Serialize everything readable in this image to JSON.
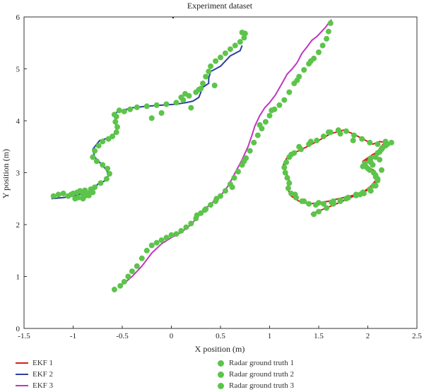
{
  "chart_data": {
    "type": "line",
    "title": "Experiment dataset",
    "xlabel": "X position (m)",
    "ylabel": "Y position (m)",
    "xlim": [
      -1.5,
      2.5
    ],
    "ylim": [
      0,
      6
    ],
    "xticks": [
      "-1.5",
      "-1",
      "-0.5",
      "0",
      "0.5",
      "1",
      "1.5",
      "2",
      "2.5"
    ],
    "yticks": [
      "0",
      "1",
      "2",
      "3",
      "4",
      "5",
      "6"
    ],
    "grid": false,
    "legend_position": "bottom",
    "series": [
      {
        "name": "EKF 1",
        "kind": "line",
        "color": "#d62020",
        "x": [
          1.42,
          1.55,
          1.68,
          1.8,
          1.92,
          2.02,
          2.08,
          2.1,
          2.06,
          2.0,
          1.95,
          2.05,
          2.1,
          2.13,
          2.17,
          2.22,
          2.12,
          2.05,
          1.95,
          1.85,
          1.75,
          1.62,
          1.5,
          1.38,
          1.27,
          1.18,
          1.14,
          1.17,
          1.2,
          1.18,
          1.22,
          1.3,
          1.4,
          1.5,
          1.6,
          1.7,
          1.82,
          1.93,
          2.02,
          2.08,
          2.07,
          2.0,
          1.95,
          2.05,
          2.15,
          2.2
        ],
        "y": [
          2.2,
          2.3,
          2.4,
          2.5,
          2.6,
          2.68,
          2.8,
          2.95,
          3.05,
          3.1,
          3.2,
          3.3,
          3.4,
          3.5,
          3.57,
          3.57,
          3.6,
          3.55,
          3.65,
          3.75,
          3.82,
          3.75,
          3.62,
          3.5,
          3.4,
          3.3,
          3.15,
          3.0,
          2.85,
          2.7,
          2.55,
          2.45,
          2.4,
          2.42,
          2.45,
          2.5,
          2.55,
          2.6,
          2.72,
          2.85,
          3.0,
          3.1,
          3.22,
          3.35,
          3.45,
          3.55
        ]
      },
      {
        "name": "EKF 2",
        "kind": "line",
        "color": "#2b3fa0",
        "x": [
          -1.22,
          -1.1,
          -1.0,
          -0.9,
          -0.82,
          -0.78,
          -0.75,
          -0.67,
          -0.64,
          -0.66,
          -0.72,
          -0.78,
          -0.8,
          -0.76,
          -0.73,
          -0.62,
          -0.58,
          -0.55,
          -0.57,
          -0.57,
          -0.58,
          -0.55,
          -0.5,
          -0.4,
          -0.25,
          -0.1,
          0.05,
          0.15,
          0.22,
          0.28,
          0.3,
          0.3,
          0.38,
          0.38,
          0.4,
          0.5,
          0.6,
          0.7,
          0.72
        ],
        "y": [
          2.5,
          2.52,
          2.55,
          2.6,
          2.62,
          2.7,
          2.78,
          2.85,
          2.95,
          3.05,
          3.18,
          3.3,
          3.45,
          3.55,
          3.62,
          3.68,
          3.75,
          3.85,
          3.95,
          4.05,
          4.1,
          4.18,
          4.2,
          4.25,
          4.28,
          4.3,
          4.32,
          4.35,
          4.38,
          4.45,
          4.55,
          4.62,
          4.72,
          4.82,
          4.95,
          5.05,
          5.25,
          5.35,
          5.45
        ]
      },
      {
        "name": "EKF 3",
        "kind": "line",
        "color": "#c036c0",
        "x": [
          -0.5,
          -0.45,
          -0.4,
          -0.3,
          -0.2,
          -0.1,
          0.0,
          0.1,
          0.2,
          0.3,
          0.4,
          0.5,
          0.58,
          0.65,
          0.72,
          0.78,
          0.82,
          0.85,
          0.9,
          0.95,
          1.0,
          1.06,
          1.12,
          1.18,
          1.23,
          1.28,
          1.33,
          1.38,
          1.43,
          1.48,
          1.52,
          1.57,
          1.6,
          1.63
        ],
        "y": [
          0.85,
          0.92,
          1.0,
          1.2,
          1.45,
          1.63,
          1.75,
          1.85,
          2.0,
          2.22,
          2.4,
          2.55,
          2.75,
          3.0,
          3.25,
          3.5,
          3.72,
          3.9,
          4.1,
          4.25,
          4.35,
          4.5,
          4.7,
          4.9,
          5.0,
          5.12,
          5.3,
          5.42,
          5.55,
          5.62,
          5.7,
          5.8,
          5.88,
          5.95
        ]
      },
      {
        "name": "Radar ground truth 1",
        "kind": "scatter",
        "color": "#5cc44a",
        "x": [
          1.45,
          1.5,
          1.58,
          1.65,
          1.72,
          1.8,
          1.88,
          1.95,
          2.02,
          2.06,
          2.1,
          2.08,
          2.02,
          1.98,
          2.03,
          2.08,
          2.12,
          2.15,
          2.2,
          2.24,
          2.18,
          2.1,
          2.02,
          1.94,
          1.86,
          1.78,
          1.7,
          1.62,
          1.55,
          1.48,
          1.4,
          1.32,
          1.25,
          1.2,
          1.17,
          1.15,
          1.16,
          1.18,
          1.2,
          1.19,
          1.22,
          1.27,
          1.33,
          1.4,
          1.47,
          1.55,
          1.63,
          1.72,
          1.8,
          1.88,
          1.96,
          2.03,
          2.08,
          2.1,
          2.06,
          2.0,
          1.97,
          2.03,
          2.1,
          2.14,
          2.18,
          1.85,
          1.72,
          1.6,
          1.42,
          1.3,
          1.22,
          2.12,
          2.05,
          1.92,
          1.78,
          1.65,
          1.5,
          1.35,
          1.26,
          2.08,
          2.14,
          2.02,
          1.95
        ],
        "y": [
          2.2,
          2.25,
          2.32,
          2.4,
          2.45,
          2.52,
          2.58,
          2.62,
          2.68,
          2.75,
          2.85,
          2.95,
          3.05,
          3.12,
          3.2,
          3.3,
          3.4,
          3.48,
          3.55,
          3.58,
          3.6,
          3.55,
          3.58,
          3.65,
          3.72,
          3.8,
          3.82,
          3.78,
          3.7,
          3.62,
          3.55,
          3.45,
          3.38,
          3.3,
          3.2,
          3.1,
          3.0,
          2.9,
          2.8,
          2.7,
          2.6,
          2.52,
          2.45,
          2.4,
          2.38,
          2.4,
          2.43,
          2.47,
          2.52,
          2.56,
          2.6,
          2.65,
          2.75,
          2.88,
          3.0,
          3.08,
          3.18,
          3.28,
          3.38,
          3.45,
          3.52,
          3.62,
          3.75,
          3.78,
          3.6,
          3.5,
          3.35,
          3.25,
          3.15,
          2.58,
          2.5,
          2.45,
          2.42,
          2.45,
          2.58,
          2.92,
          3.05,
          3.22,
          3.12
        ]
      },
      {
        "name": "Radar ground truth 2",
        "kind": "scatter",
        "color": "#5cc44a",
        "x": [
          -1.2,
          -1.15,
          -1.1,
          -1.05,
          -1.0,
          -0.95,
          -0.9,
          -0.85,
          -0.8,
          -0.98,
          -0.93,
          -0.88,
          -0.82,
          -0.78,
          -0.72,
          -0.66,
          -0.63,
          -0.65,
          -0.7,
          -0.76,
          -0.8,
          -0.78,
          -0.74,
          -0.7,
          -0.64,
          -0.6,
          -0.56,
          -0.55,
          -0.57,
          -0.56,
          -0.58,
          -0.53,
          -0.48,
          -0.42,
          -0.35,
          -0.25,
          -0.15,
          -0.05,
          0.05,
          0.12,
          0.18,
          0.25,
          0.3,
          0.32,
          0.35,
          0.38,
          0.4,
          0.45,
          0.5,
          0.55,
          0.6,
          0.65,
          0.7,
          0.74,
          0.75,
          0.72,
          -0.2,
          -0.1,
          0.1,
          0.28,
          0.44,
          0.2,
          0.14,
          -0.9,
          -0.96,
          -1.02,
          -0.88,
          -0.84
        ],
        "y": [
          2.55,
          2.58,
          2.6,
          2.55,
          2.6,
          2.52,
          2.58,
          2.6,
          2.62,
          2.5,
          2.65,
          2.55,
          2.68,
          2.72,
          2.8,
          2.88,
          2.98,
          3.08,
          3.15,
          3.22,
          3.3,
          3.42,
          3.52,
          3.6,
          3.65,
          3.7,
          3.78,
          3.88,
          3.98,
          4.08,
          4.12,
          4.2,
          4.18,
          4.22,
          4.26,
          4.28,
          4.3,
          4.32,
          4.35,
          4.4,
          4.48,
          4.55,
          4.62,
          4.72,
          4.85,
          4.95,
          5.05,
          5.15,
          5.22,
          5.3,
          5.38,
          5.45,
          5.52,
          5.6,
          5.68,
          5.7,
          4.05,
          4.15,
          4.45,
          4.6,
          4.68,
          4.25,
          4.52,
          2.5,
          2.62,
          2.58,
          2.66,
          2.56
        ]
      },
      {
        "name": "Radar ground truth 3",
        "kind": "scatter",
        "color": "#5cc44a",
        "x": [
          -0.58,
          -0.52,
          -0.48,
          -0.44,
          -0.4,
          -0.35,
          -0.3,
          -0.25,
          -0.2,
          -0.15,
          -0.1,
          -0.05,
          0.0,
          0.05,
          0.1,
          0.15,
          0.2,
          0.25,
          0.3,
          0.35,
          0.4,
          0.45,
          0.5,
          0.55,
          0.6,
          0.64,
          0.68,
          0.72,
          0.76,
          0.8,
          0.84,
          0.88,
          0.92,
          0.96,
          1.0,
          1.05,
          1.1,
          1.15,
          1.2,
          1.25,
          1.3,
          1.35,
          1.4,
          1.45,
          1.5,
          1.54,
          1.58,
          1.6,
          1.62,
          0.26,
          0.34,
          0.46,
          0.62,
          0.74,
          0.9,
          1.02,
          1.28,
          1.42
        ],
        "y": [
          0.75,
          0.82,
          0.9,
          1.0,
          1.1,
          1.2,
          1.35,
          1.5,
          1.6,
          1.65,
          1.7,
          1.75,
          1.8,
          1.82,
          1.88,
          1.95,
          2.02,
          2.12,
          2.22,
          2.3,
          2.38,
          2.45,
          2.55,
          2.65,
          2.78,
          2.9,
          3.02,
          3.15,
          3.28,
          3.42,
          3.58,
          3.72,
          3.85,
          3.98,
          4.1,
          4.22,
          4.3,
          4.4,
          4.55,
          4.72,
          4.85,
          4.98,
          5.1,
          5.2,
          5.32,
          5.45,
          5.58,
          5.72,
          5.88,
          2.18,
          2.28,
          2.5,
          2.72,
          3.22,
          3.92,
          4.2,
          4.78,
          5.15
        ]
      }
    ]
  }
}
